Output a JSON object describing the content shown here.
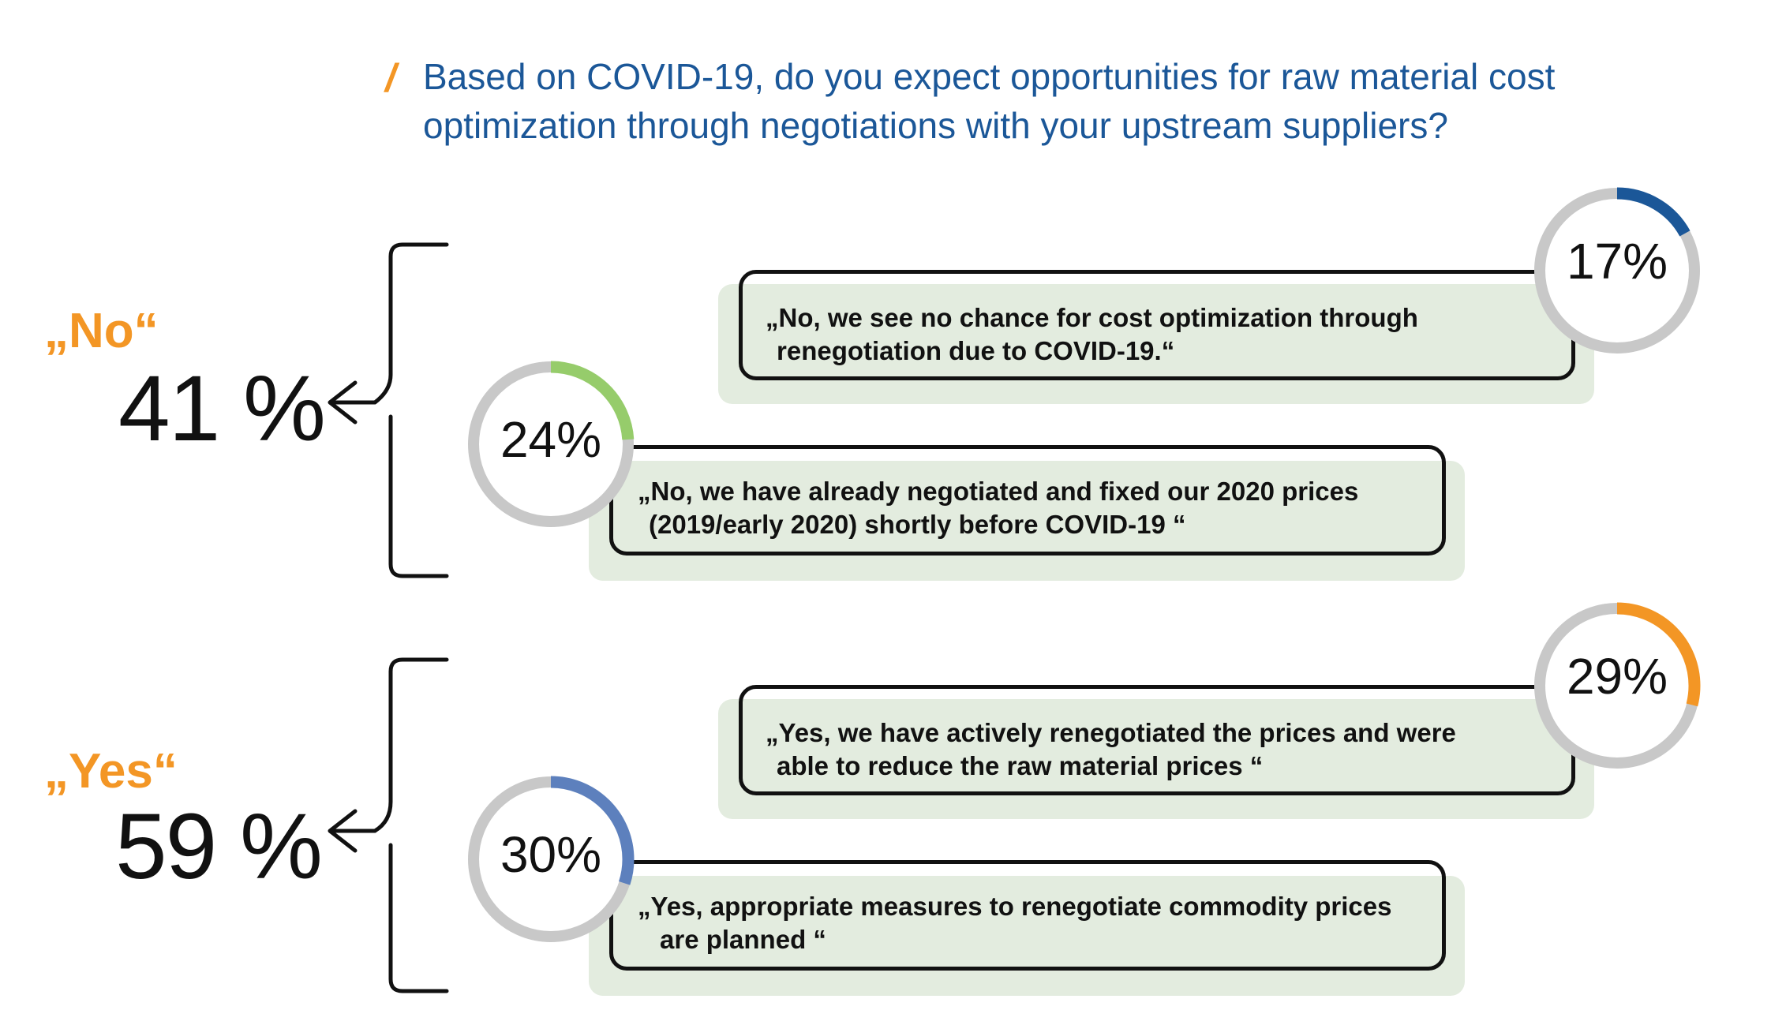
{
  "question": {
    "marker": "/",
    "lines": [
      "Based on COVID-19, do you expect opportunities for raw material cost",
      "optimization through negotiations with your upstream suppliers?"
    ]
  },
  "groups": [
    {
      "label": "„No“",
      "value": "41 %"
    },
    {
      "label": "„Yes“",
      "value": "59 %"
    }
  ],
  "chart_data": {
    "type": "donut",
    "groups": [
      {
        "name": "„No“",
        "total_percent": 41
      },
      {
        "name": "„Yes“",
        "total_percent": 59
      }
    ],
    "series": [
      {
        "group": "„No“",
        "percent": 17,
        "label": "17%",
        "color": "#1b5798",
        "lines": [
          "„No, we see no chance for cost optimization through",
          "renegotiation due to COVID-19.“"
        ]
      },
      {
        "group": "„No“",
        "percent": 24,
        "label": "24%",
        "color": "#96cc6b",
        "lines": [
          "„No, we have already negotiated and fixed our 2020 prices",
          "(2019/early 2020) shortly before COVID-19 “"
        ]
      },
      {
        "group": "„Yes“",
        "percent": 29,
        "label": "29%",
        "color": "#f39625",
        "lines": [
          "„Yes, we have actively renegotiated the prices and were",
          "able to reduce the raw material prices “"
        ]
      },
      {
        "group": "„Yes“",
        "percent": 30,
        "label": "30%",
        "color": "#5d80bd",
        "lines": [
          "„Yes, appropriate measures to renegotiate commodity prices",
          "are planned “"
        ]
      }
    ],
    "track_color": "#c8c8c8"
  }
}
